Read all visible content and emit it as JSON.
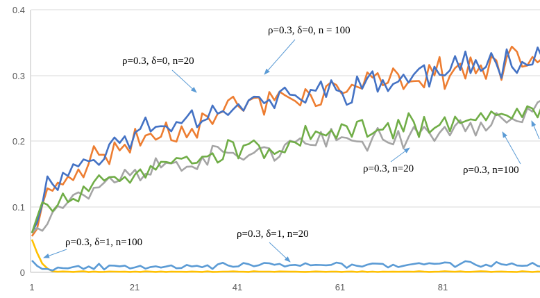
{
  "chart_data": {
    "type": "line",
    "xlim": [
      1,
      100
    ],
    "ylim": [
      0,
      0.4
    ],
    "yticks": [
      "0",
      "0.1",
      "0.2",
      "0.3",
      "0.4"
    ],
    "xticks": [
      1,
      21,
      41,
      61,
      81
    ],
    "grid": "horizontal",
    "series": [
      {
        "key": "blue",
        "color": "#4472c4",
        "width": 2.6,
        "anchors": [
          [
            1,
            0.06
          ],
          [
            3,
            0.12
          ],
          [
            5,
            0.14
          ],
          [
            8,
            0.155
          ],
          [
            11,
            0.17
          ],
          [
            14,
            0.18
          ],
          [
            17,
            0.19
          ],
          [
            20,
            0.21
          ],
          [
            25,
            0.22
          ],
          [
            30,
            0.235
          ],
          [
            35,
            0.245
          ],
          [
            40,
            0.255
          ],
          [
            45,
            0.26
          ],
          [
            50,
            0.265
          ],
          [
            60,
            0.28
          ],
          [
            70,
            0.29
          ],
          [
            80,
            0.305
          ],
          [
            90,
            0.32
          ],
          [
            100,
            0.335
          ]
        ],
        "noise": 0.018,
        "seed": 11
      },
      {
        "key": "orange",
        "color": "#ed7d31",
        "width": 2.6,
        "anchors": [
          [
            1,
            0.055
          ],
          [
            3,
            0.1
          ],
          [
            5,
            0.125
          ],
          [
            8,
            0.15
          ],
          [
            11,
            0.165
          ],
          [
            14,
            0.175
          ],
          [
            17,
            0.185
          ],
          [
            20,
            0.2
          ],
          [
            25,
            0.21
          ],
          [
            30,
            0.22
          ],
          [
            35,
            0.235
          ],
          [
            40,
            0.25
          ],
          [
            45,
            0.26
          ],
          [
            50,
            0.265
          ],
          [
            60,
            0.275
          ],
          [
            70,
            0.29
          ],
          [
            80,
            0.305
          ],
          [
            90,
            0.315
          ],
          [
            100,
            0.32
          ]
        ],
        "noise": 0.018,
        "seed": 23
      },
      {
        "key": "gray",
        "color": "#a5a5a5",
        "width": 2.6,
        "anchors": [
          [
            1,
            0.06
          ],
          [
            3,
            0.08
          ],
          [
            5,
            0.095
          ],
          [
            8,
            0.11
          ],
          [
            11,
            0.12
          ],
          [
            14,
            0.13
          ],
          [
            17,
            0.14
          ],
          [
            20,
            0.15
          ],
          [
            25,
            0.16
          ],
          [
            30,
            0.165
          ],
          [
            35,
            0.175
          ],
          [
            40,
            0.18
          ],
          [
            45,
            0.185
          ],
          [
            50,
            0.19
          ],
          [
            60,
            0.2
          ],
          [
            70,
            0.205
          ],
          [
            80,
            0.215
          ],
          [
            90,
            0.225
          ],
          [
            100,
            0.255
          ]
        ],
        "noise": 0.013,
        "seed": 37
      },
      {
        "key": "green",
        "color": "#70ad47",
        "width": 2.6,
        "anchors": [
          [
            1,
            0.06
          ],
          [
            3,
            0.1
          ],
          [
            5,
            0.1
          ],
          [
            8,
            0.11
          ],
          [
            11,
            0.12
          ],
          [
            14,
            0.13
          ],
          [
            17,
            0.14
          ],
          [
            20,
            0.15
          ],
          [
            25,
            0.165
          ],
          [
            30,
            0.175
          ],
          [
            35,
            0.18
          ],
          [
            40,
            0.185
          ],
          [
            45,
            0.19
          ],
          [
            50,
            0.2
          ],
          [
            60,
            0.21
          ],
          [
            70,
            0.22
          ],
          [
            80,
            0.225
          ],
          [
            90,
            0.235
          ],
          [
            100,
            0.245
          ]
        ],
        "noise": 0.014,
        "seed": 51
      },
      {
        "key": "lightblue",
        "color": "#5b9bd5",
        "width": 2.6,
        "anchors": [
          [
            1,
            0.018
          ],
          [
            3,
            0.006
          ],
          [
            5,
            0.007
          ],
          [
            10,
            0.008
          ],
          [
            20,
            0.01
          ],
          [
            40,
            0.01
          ],
          [
            60,
            0.011
          ],
          [
            80,
            0.012
          ],
          [
            100,
            0.012
          ]
        ],
        "noise": 0.0035,
        "seed": 67
      },
      {
        "key": "yellow",
        "color": "#ffc000",
        "width": 2.6,
        "anchors": [
          [
            1,
            0.05
          ],
          [
            2,
            0.03
          ],
          [
            3,
            0.013
          ],
          [
            4,
            0.006
          ],
          [
            5,
            0.002
          ],
          [
            6,
            0.001
          ],
          [
            10,
            0.001
          ],
          [
            100,
            0.001
          ]
        ],
        "noise": 0.0004,
        "seed": 79
      }
    ],
    "annotations": [
      {
        "text": "ρ=0.3, δ=0, n = 100"
      },
      {
        "text": "ρ=0.3, δ=0, n=20"
      },
      {
        "text": "ρ=0.3, n=20"
      },
      {
        "text": "ρ=0.3, n=100"
      },
      {
        "text": "ρ=0.3, δ=1, n=100"
      },
      {
        "text": "ρ=0.3, δ=1, n=20"
      }
    ]
  }
}
